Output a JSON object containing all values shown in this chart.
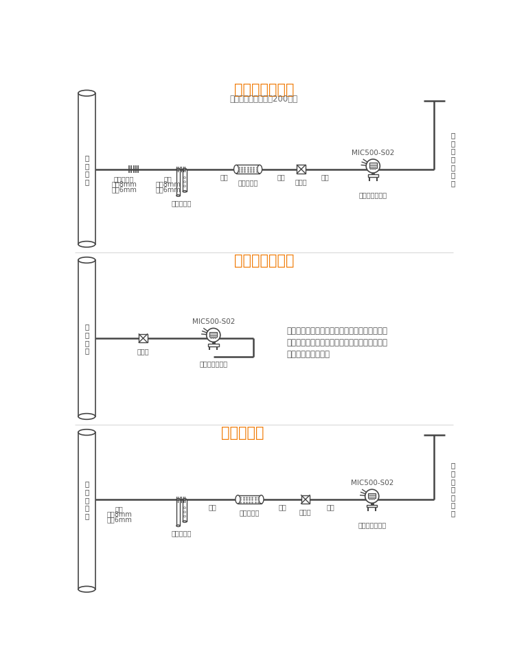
{
  "title1": "高温处理流程图",
  "subtitle1": "（注意温度不能超过200度）",
  "title2": "高压处理流程图",
  "title3": "除湿流程图",
  "title_color": "#F07800",
  "subtitle_color": "#666666",
  "line_color": "#444444",
  "text_color": "#555555",
  "bg_color": "#FFFFFF",
  "note2": "减压阀：一种处理压力的装置，进口压力较大的\n气体经过减压阀的处理之后以微正压或者常压的\n形式从出气口排出。"
}
